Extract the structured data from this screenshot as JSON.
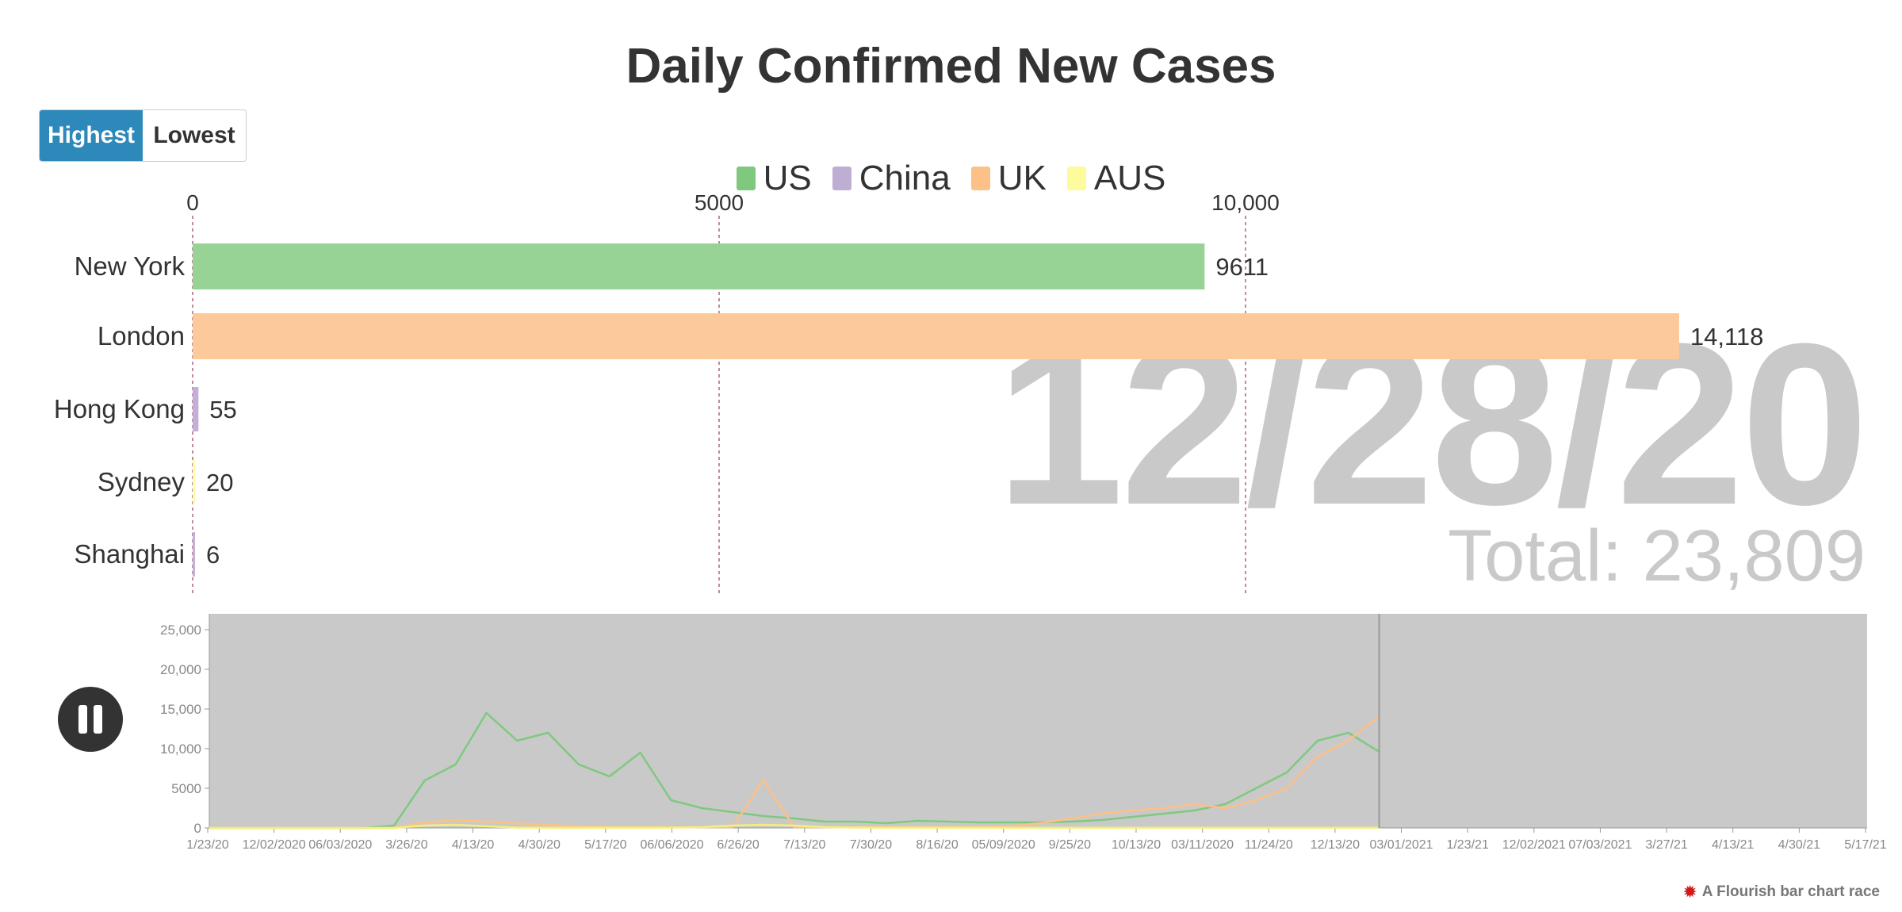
{
  "title": "Daily Confirmed New Cases",
  "toggle": {
    "highest": "Highest",
    "lowest": "Lowest"
  },
  "legend": [
    {
      "name": "US",
      "color": "#98d396"
    },
    {
      "name": "China",
      "color": "#c3afd9"
    },
    {
      "name": "UK",
      "color": "#fbc99a"
    },
    {
      "name": "AUS",
      "color": "#fdfbac"
    }
  ],
  "current_date": "12/28/20",
  "total_label": "Total: 23,809",
  "credit": "A Flourish bar chart race",
  "play_icon": "pause-icon",
  "chart_data": [
    {
      "type": "bar",
      "orientation": "horizontal",
      "title": "Daily Confirmed New Cases",
      "categories": [
        "New York",
        "London",
        "Hong Kong",
        "Sydney",
        "Shanghai"
      ],
      "values": [
        9611,
        14118,
        55,
        20,
        6
      ],
      "value_labels": [
        "9611",
        "14,118",
        "55",
        "20",
        "6"
      ],
      "groups": [
        "US",
        "UK",
        "China",
        "AUS",
        "China"
      ],
      "colors": [
        "#98d396",
        "#fbc99a",
        "#c3afd9",
        "#fdfbac",
        "#c3afd9"
      ],
      "xticks": [
        0,
        5000,
        10000
      ],
      "xtick_labels": [
        "0",
        "5000",
        "10,000"
      ],
      "xlim": [
        0,
        16000
      ],
      "legend": "top-center"
    },
    {
      "type": "line",
      "yticks": [
        0,
        5000,
        10000,
        15000,
        20000,
        25000
      ],
      "ytick_labels": [
        "0",
        "5000",
        "10,000",
        "15,000",
        "20,000",
        "25,000"
      ],
      "ylim": [
        0,
        27000
      ],
      "x_labels": [
        "1/23/20",
        "12/02/2020",
        "06/03/2020",
        "3/26/20",
        "4/13/20",
        "4/30/20",
        "5/17/20",
        "06/06/2020",
        "6/26/20",
        "7/13/20",
        "7/30/20",
        "8/16/20",
        "05/09/2020",
        "9/25/20",
        "10/13/20",
        "03/11/2020",
        "11/24/20",
        "12/13/20",
        "03/01/2021",
        "1/23/21",
        "12/02/2021",
        "07/03/2021",
        "3/27/21",
        "4/13/21",
        "4/30/21",
        "5/17/21"
      ],
      "current_index": 18,
      "series": [
        {
          "name": "US",
          "color": "#7fc97f",
          "values": [
            0,
            0,
            0,
            0,
            0,
            0,
            300,
            6000,
            8000,
            14500,
            11000,
            12000,
            8000,
            6500,
            9500,
            3500,
            2500,
            2000,
            1500,
            1200,
            800,
            800,
            600,
            900,
            800,
            700,
            700,
            700,
            800,
            1000,
            1400,
            1800,
            2200,
            3000,
            5000,
            7000,
            11000,
            12000,
            9611
          ]
        },
        {
          "name": "UK",
          "color": "#fdc086",
          "values": [
            0,
            0,
            0,
            0,
            0,
            0,
            0,
            700,
            1000,
            800,
            600,
            400,
            200,
            100,
            100,
            100,
            100,
            100,
            6000,
            100,
            100,
            100,
            100,
            100,
            100,
            100,
            200,
            600,
            1200,
            1800,
            2200,
            2500,
            3000,
            2500,
            3500,
            5000,
            9000,
            11000,
            14118
          ]
        },
        {
          "name": "AUS",
          "color": "#f5ef7a",
          "values": [
            0,
            0,
            0,
            0,
            0,
            0,
            0,
            300,
            400,
            200,
            50,
            20,
            20,
            20,
            30,
            50,
            100,
            300,
            400,
            300,
            100,
            50,
            20,
            20,
            20,
            20,
            20,
            20,
            20,
            20,
            20,
            20,
            20,
            20,
            20,
            20,
            20,
            20,
            20
          ]
        }
      ]
    }
  ]
}
